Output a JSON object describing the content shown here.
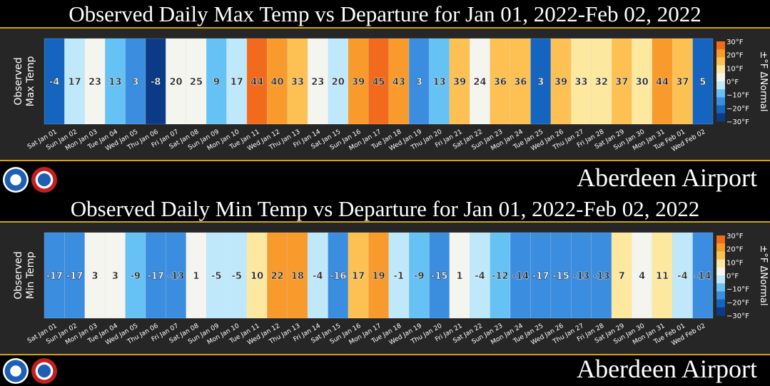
{
  "panels": [
    {
      "title": "Observed Daily Max Temp vs Departure for Jan 01, 2022-Feb 02, 2022",
      "ylabel_line1": "Observed",
      "ylabel_line2": "Max Temp",
      "station": "Aberdeen Airport"
    },
    {
      "title": "Observed Daily Min Temp vs Departure for Jan 01, 2022-Feb 02, 2022",
      "ylabel_line1": "Observed",
      "ylabel_line2": "Min Temp",
      "station": "Aberdeen Airport"
    }
  ],
  "logos": {
    "left": "noaa-logo",
    "right": "nws-logo"
  },
  "colorbar": {
    "label": "±°F ΔNormal",
    "ticks": [
      "30°F",
      "20°F",
      "10°F",
      "0°F",
      "−10°F",
      "−20°F",
      "−30°F"
    ],
    "tick_values": [
      30,
      20,
      10,
      0,
      -10,
      -20,
      -30
    ],
    "colors": [
      "#0b3a86",
      "#1565c0",
      "#3b8de0",
      "#66c2f5",
      "#bfe8fb",
      "#f5f5f0",
      "#fde8a0",
      "#fdc052",
      "#f99a2c",
      "#f26a1b"
    ]
  },
  "chart_data": [
    {
      "type": "heatmap",
      "title": "Observed Daily Max Temp vs Departure for Jan 01, 2022-Feb 02, 2022",
      "ylabel": "Observed Max Temp",
      "categories": [
        "Sat Jan 01",
        "Sun Jan 02",
        "Mon Jan 03",
        "Tue Jan 04",
        "Wed Jan 05",
        "Thu Jan 06",
        "Fri Jan 07",
        "Sat Jan 08",
        "Sun Jan 09",
        "Mon Jan 10",
        "Tue Jan 11",
        "Wed Jan 12",
        "Thu Jan 13",
        "Fri Jan 14",
        "Sat Jan 15",
        "Sun Jan 16",
        "Mon Jan 17",
        "Tue Jan 18",
        "Wed Jan 19",
        "Thu Jan 20",
        "Fri Jan 21",
        "Sat Jan 22",
        "Sun Jan 23",
        "Mon Jan 24",
        "Tue Jan 25",
        "Wed Jan 26",
        "Thu Jan 27",
        "Fri Jan 28",
        "Sat Jan 29",
        "Sun Jan 30",
        "Mon Jan 31",
        "Tue Feb 01",
        "Wed Feb 02"
      ],
      "values": [
        -4,
        17,
        23,
        13,
        3,
        -8,
        20,
        25,
        9,
        17,
        44,
        40,
        33,
        23,
        20,
        39,
        45,
        43,
        3,
        13,
        39,
        24,
        36,
        36,
        3,
        39,
        33,
        32,
        37,
        30,
        44,
        37,
        5
      ],
      "departures": [
        -22,
        -3,
        3,
        -9,
        -16,
        -27,
        0,
        5,
        -9,
        -3,
        24,
        19,
        12,
        2,
        -1,
        18,
        24,
        22,
        -18,
        -9,
        17,
        2,
        14,
        13,
        -19,
        16,
        10,
        9,
        13,
        6,
        20,
        12,
        -20
      ],
      "colorbar_range": [
        -30,
        30
      ]
    },
    {
      "type": "heatmap",
      "title": "Observed Daily Min Temp vs Departure for Jan 01, 2022-Feb 02, 2022",
      "ylabel": "Observed Min Temp",
      "categories": [
        "Sat Jan 01",
        "Sun Jan 02",
        "Mon Jan 03",
        "Tue Jan 04",
        "Wed Jan 05",
        "Thu Jan 06",
        "Fri Jan 07",
        "Sat Jan 08",
        "Sun Jan 09",
        "Mon Jan 10",
        "Tue Jan 11",
        "Wed Jan 12",
        "Thu Jan 13",
        "Fri Jan 14",
        "Sat Jan 15",
        "Sun Jan 16",
        "Mon Jan 17",
        "Tue Jan 18",
        "Wed Jan 19",
        "Thu Jan 20",
        "Fri Jan 21",
        "Sat Jan 22",
        "Sun Jan 23",
        "Mon Jan 24",
        "Tue Jan 25",
        "Wed Jan 26",
        "Thu Jan 27",
        "Fri Jan 28",
        "Sat Jan 29",
        "Sun Jan 30",
        "Mon Jan 31",
        "Tue Feb 01",
        "Wed Feb 02"
      ],
      "values": [
        -17,
        -17,
        3,
        3,
        -9,
        -17,
        -13,
        1,
        -5,
        -5,
        10,
        22,
        18,
        -4,
        -16,
        17,
        19,
        -1,
        -9,
        -15,
        1,
        -4,
        -12,
        -14,
        -17,
        -15,
        -13,
        -13,
        7,
        4,
        11,
        -4,
        -14
      ],
      "departures": [
        -16,
        -16,
        4,
        4,
        -8,
        -17,
        -13,
        1,
        -5,
        -5,
        9,
        21,
        18,
        -4,
        -16,
        16,
        19,
        -2,
        -9,
        -15,
        1,
        -4,
        -12,
        -14,
        -17,
        -15,
        -13,
        -13,
        6,
        3,
        10,
        -5,
        -14
      ],
      "colorbar_range": [
        -30,
        30
      ]
    }
  ]
}
